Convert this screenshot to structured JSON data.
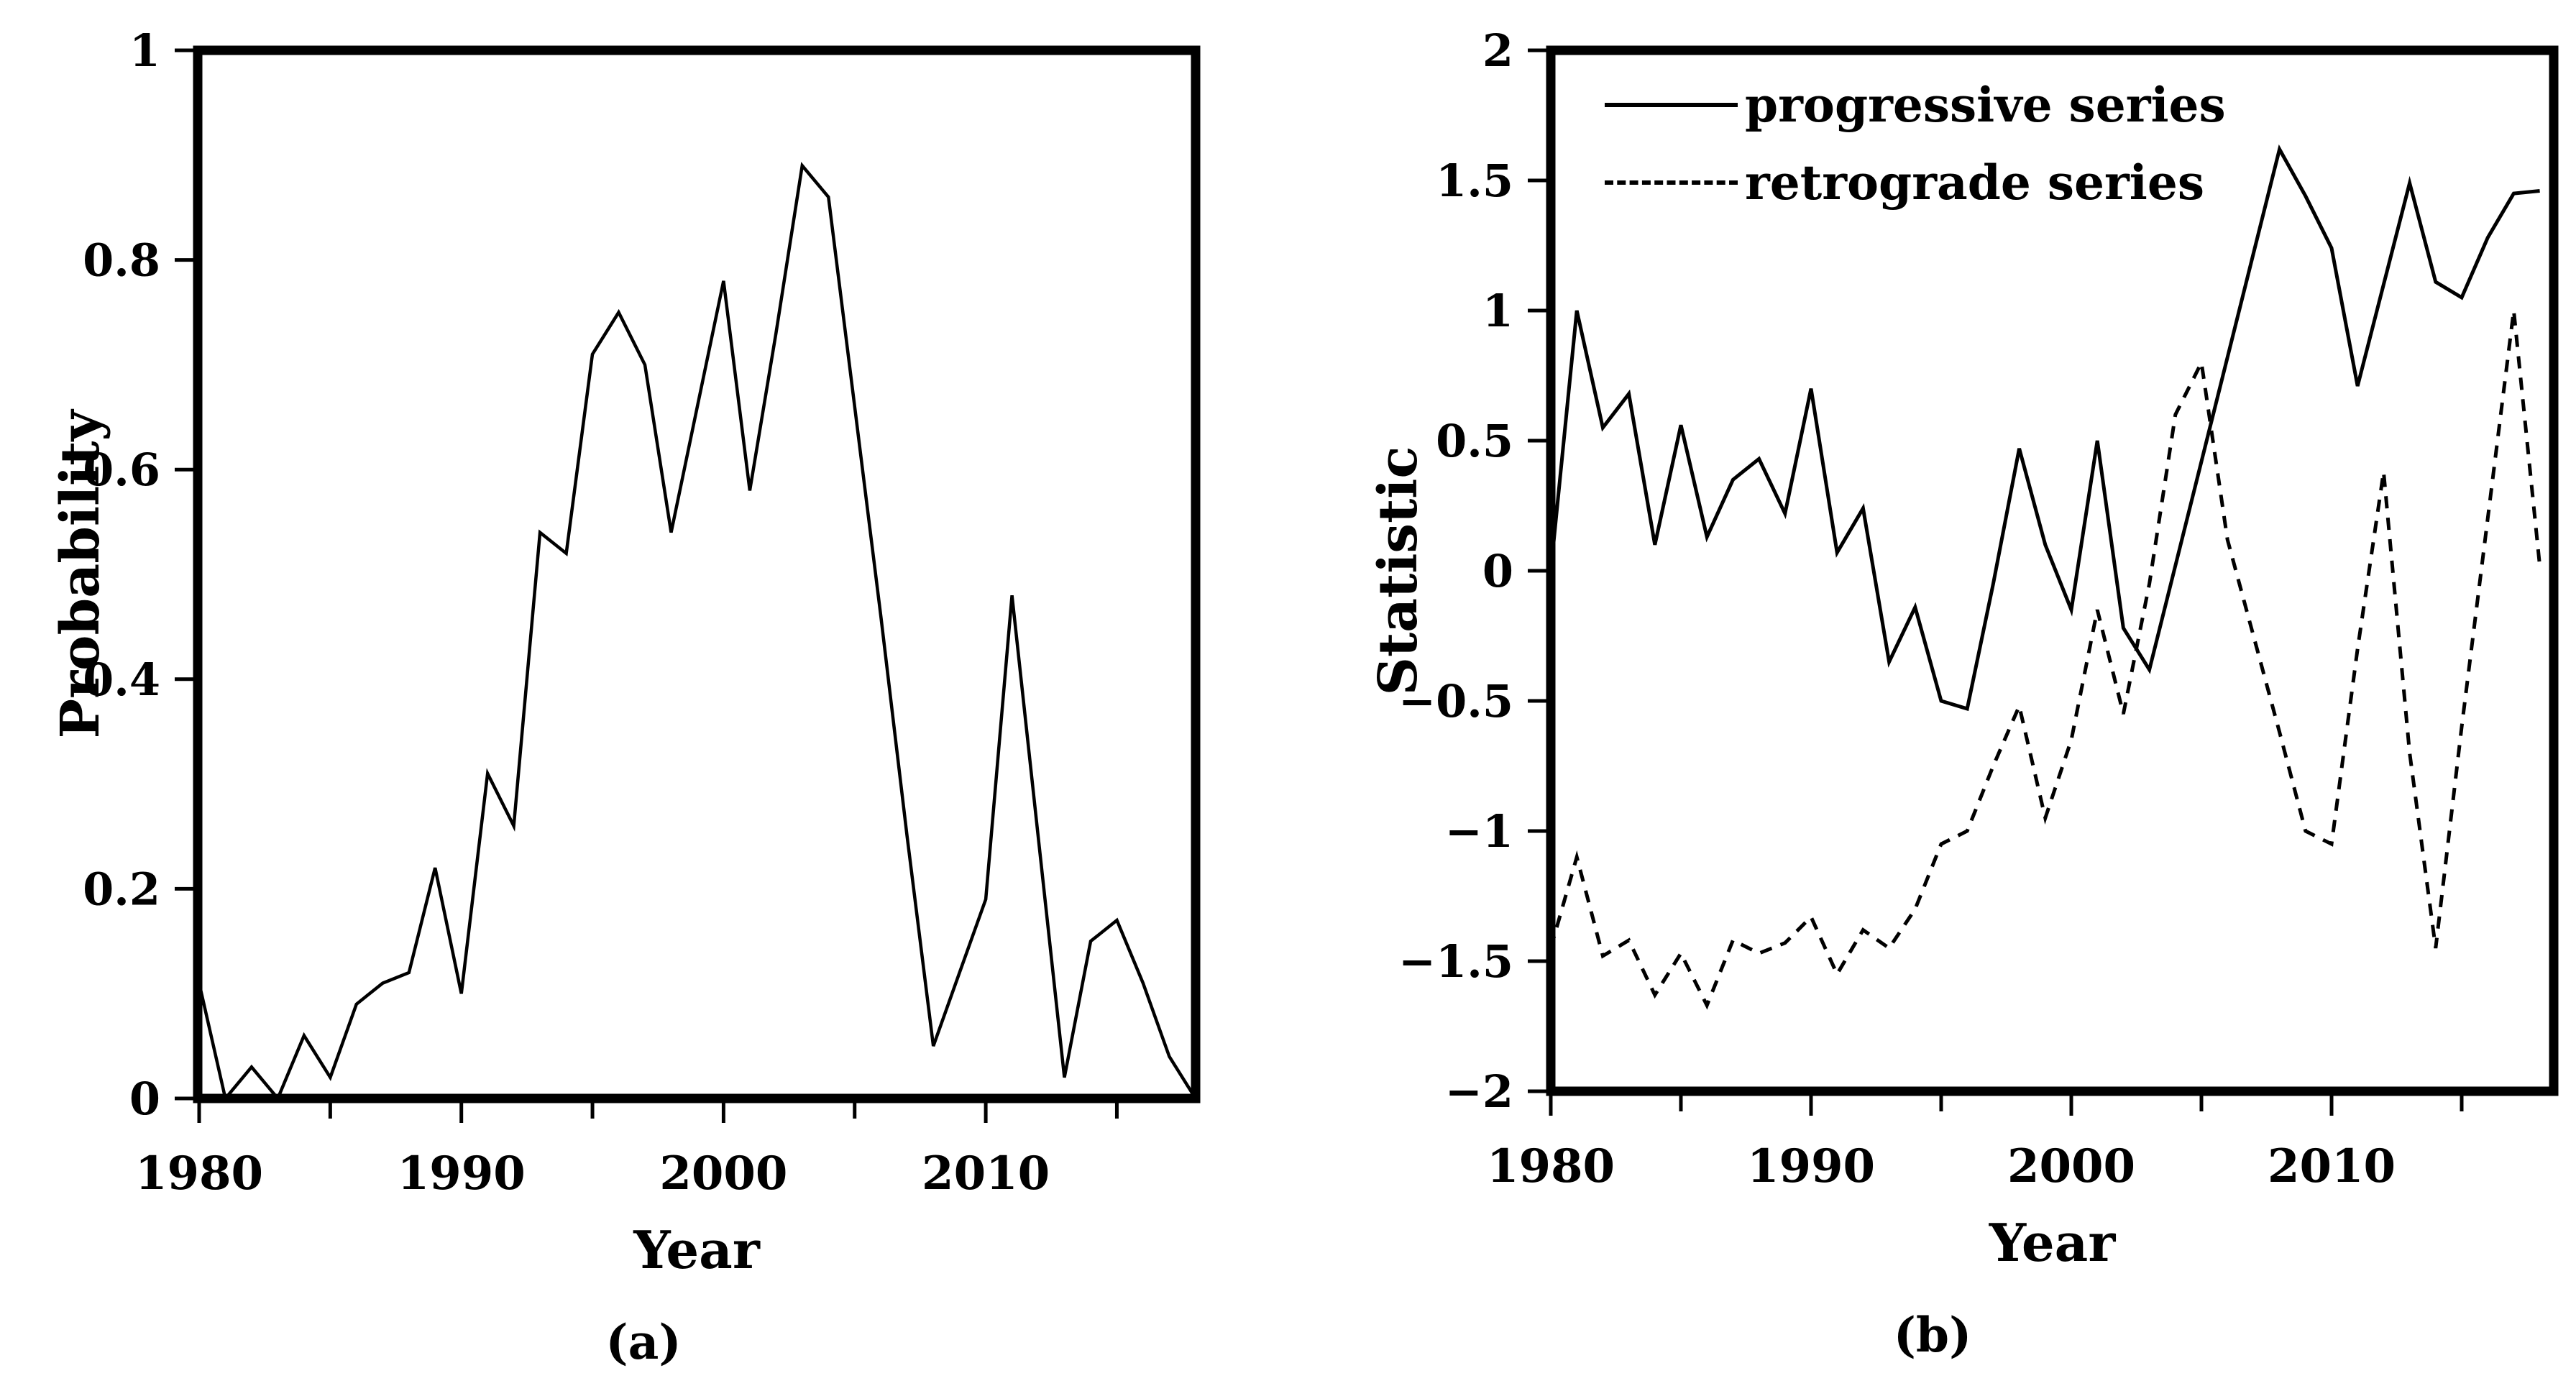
{
  "figure": {
    "background_color": "#ffffff",
    "line_color": "#000000"
  },
  "chart_data": [
    {
      "type": "line",
      "caption": "(a)",
      "xlabel": "Year",
      "ylabel": "Probability",
      "x_range": [
        1980,
        2018
      ],
      "ylim": [
        0,
        1
      ],
      "x_ticks_major": [
        1980,
        1990,
        2000,
        2010
      ],
      "x_tick_labels": [
        "1980",
        "1990",
        "2000",
        "2010"
      ],
      "x_ticks_minor": [
        1985,
        1995,
        2005,
        2015
      ],
      "y_ticks": [
        0,
        0.2,
        0.4,
        0.6,
        0.8,
        1
      ],
      "y_tick_labels": [
        "0",
        "0.2",
        "0.4",
        "0.6",
        "0.8",
        "1"
      ],
      "grid": false,
      "years": [
        1980,
        1981,
        1982,
        1983,
        1984,
        1985,
        1986,
        1987,
        1988,
        1989,
        1990,
        1991,
        1992,
        1993,
        1994,
        1995,
        1996,
        1997,
        1998,
        1999,
        2000,
        2001,
        2002,
        2003,
        2004,
        2005,
        2006,
        2007,
        2008,
        2009,
        2010,
        2011,
        2012,
        2013,
        2014,
        2015,
        2016,
        2017,
        2018
      ],
      "series": [
        {
          "name": "probability",
          "style": "solid",
          "values": [
            0.11,
            0.0,
            0.03,
            0.0,
            0.06,
            0.02,
            0.09,
            0.11,
            0.12,
            0.22,
            0.1,
            0.31,
            0.26,
            0.54,
            0.52,
            0.71,
            0.75,
            0.7,
            0.54,
            0.66,
            0.78,
            0.58,
            0.73,
            0.89,
            0.86,
            0.66,
            0.46,
            0.25,
            0.05,
            0.12,
            0.19,
            0.48,
            0.25,
            0.02,
            0.15,
            0.17,
            0.11,
            0.04,
            0.0
          ]
        }
      ]
    },
    {
      "type": "line",
      "caption": "(b)",
      "xlabel": "Year",
      "ylabel": "Statistic",
      "x_range": [
        1980,
        2018
      ],
      "ylim": [
        -2,
        2
      ],
      "x_ticks_major": [
        1980,
        1990,
        2000,
        2010
      ],
      "x_tick_labels": [
        "1980",
        "1990",
        "2000",
        "2010"
      ],
      "x_ticks_minor": [
        1985,
        1995,
        2005,
        2015
      ],
      "y_ticks": [
        2,
        1.5,
        1,
        0.5,
        0,
        -0.5,
        -1,
        -1.5,
        -2
      ],
      "y_tick_labels": [
        "2",
        "1.5",
        "1",
        "0.5",
        "0",
        "−0.5",
        "−1",
        "−1.5",
        "−2"
      ],
      "grid": false,
      "legend": [
        {
          "label": "progressive series",
          "style": "solid"
        },
        {
          "label": "retrograde series",
          "style": "dashed"
        }
      ],
      "legend_position": "top-left",
      "years": [
        1980,
        1981,
        1982,
        1983,
        1984,
        1985,
        1986,
        1987,
        1988,
        1989,
        1990,
        1991,
        1992,
        1993,
        1994,
        1995,
        1996,
        1997,
        1998,
        1999,
        2000,
        2001,
        2002,
        2003,
        2004,
        2005,
        2006,
        2007,
        2008,
        2009,
        2010,
        2011,
        2012,
        2013,
        2014,
        2015,
        2016,
        2017,
        2018
      ],
      "series": [
        {
          "name": "progressive series",
          "style": "solid",
          "values": [
            0.0,
            1.0,
            0.55,
            0.68,
            0.1,
            0.56,
            0.13,
            0.35,
            0.43,
            0.22,
            0.7,
            0.07,
            0.24,
            -0.35,
            -0.14,
            -0.5,
            -0.53,
            -0.05,
            0.47,
            0.1,
            -0.15,
            0.5,
            -0.22,
            -0.38,
            0.02,
            0.42,
            0.82,
            1.22,
            1.62,
            1.44,
            1.24,
            0.71,
            1.1,
            1.49,
            1.11,
            1.05,
            1.28,
            1.45,
            1.46
          ]
        },
        {
          "name": "retrograde series",
          "style": "dashed",
          "values": [
            -1.45,
            -1.1,
            -1.48,
            -1.42,
            -1.63,
            -1.47,
            -1.67,
            -1.42,
            -1.47,
            -1.43,
            -1.33,
            -1.55,
            -1.38,
            -1.45,
            -1.3,
            -1.05,
            -1.0,
            -0.75,
            -0.52,
            -0.95,
            -0.65,
            -0.15,
            -0.55,
            -0.05,
            0.6,
            0.8,
            0.12,
            -0.25,
            -0.62,
            -1.0,
            -1.05,
            -0.3,
            0.38,
            -0.7,
            -1.45,
            -0.6,
            0.2,
            1.0,
            0.02
          ]
        }
      ]
    }
  ]
}
